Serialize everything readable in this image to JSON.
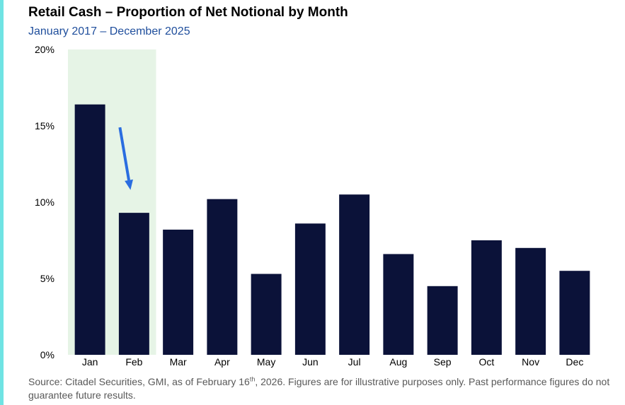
{
  "header": {
    "title": "Retail Cash – Proportion of Net Notional by Month",
    "subtitle": "January 2017 – December 2025"
  },
  "footer": {
    "source_before": "Source: Citadel Securities, GMI, as of February 16",
    "source_sup": "th",
    "source_after": ", 2026. Figures are for illustrative purposes only. Past performance figures do not guarantee future results."
  },
  "colors": {
    "accent_bar": "#6fe3e3",
    "subtitle": "#1f4e9c",
    "bar": "#0b1239",
    "highlight": "#e6f4e6",
    "arrow": "#2a6de0"
  },
  "annotations": {
    "highlight_band": {
      "from_category": "Jan",
      "to_category": "Feb"
    },
    "arrow": {
      "from_value": 14.9,
      "to_value": 10.8,
      "category": "Feb",
      "icon": "down-arrow-icon"
    }
  },
  "chart_data": {
    "type": "bar",
    "title": "Retail Cash – Proportion of Net Notional by Month",
    "subtitle": "January 2017 – December 2025",
    "categories": [
      "Jan",
      "Feb",
      "Mar",
      "Apr",
      "May",
      "Jun",
      "Jul",
      "Aug",
      "Sep",
      "Oct",
      "Nov",
      "Dec"
    ],
    "values": [
      16.4,
      9.3,
      8.2,
      10.2,
      5.3,
      8.6,
      10.5,
      6.6,
      4.5,
      7.5,
      7.0,
      5.5
    ],
    "unit": "%",
    "ylim": [
      0,
      20
    ],
    "yticks": [
      0,
      5,
      10,
      15,
      20
    ],
    "ytick_labels": [
      "0%",
      "5%",
      "10%",
      "15%",
      "20%"
    ],
    "xlabel": "",
    "ylabel": "",
    "grid": false,
    "legend": "none"
  }
}
